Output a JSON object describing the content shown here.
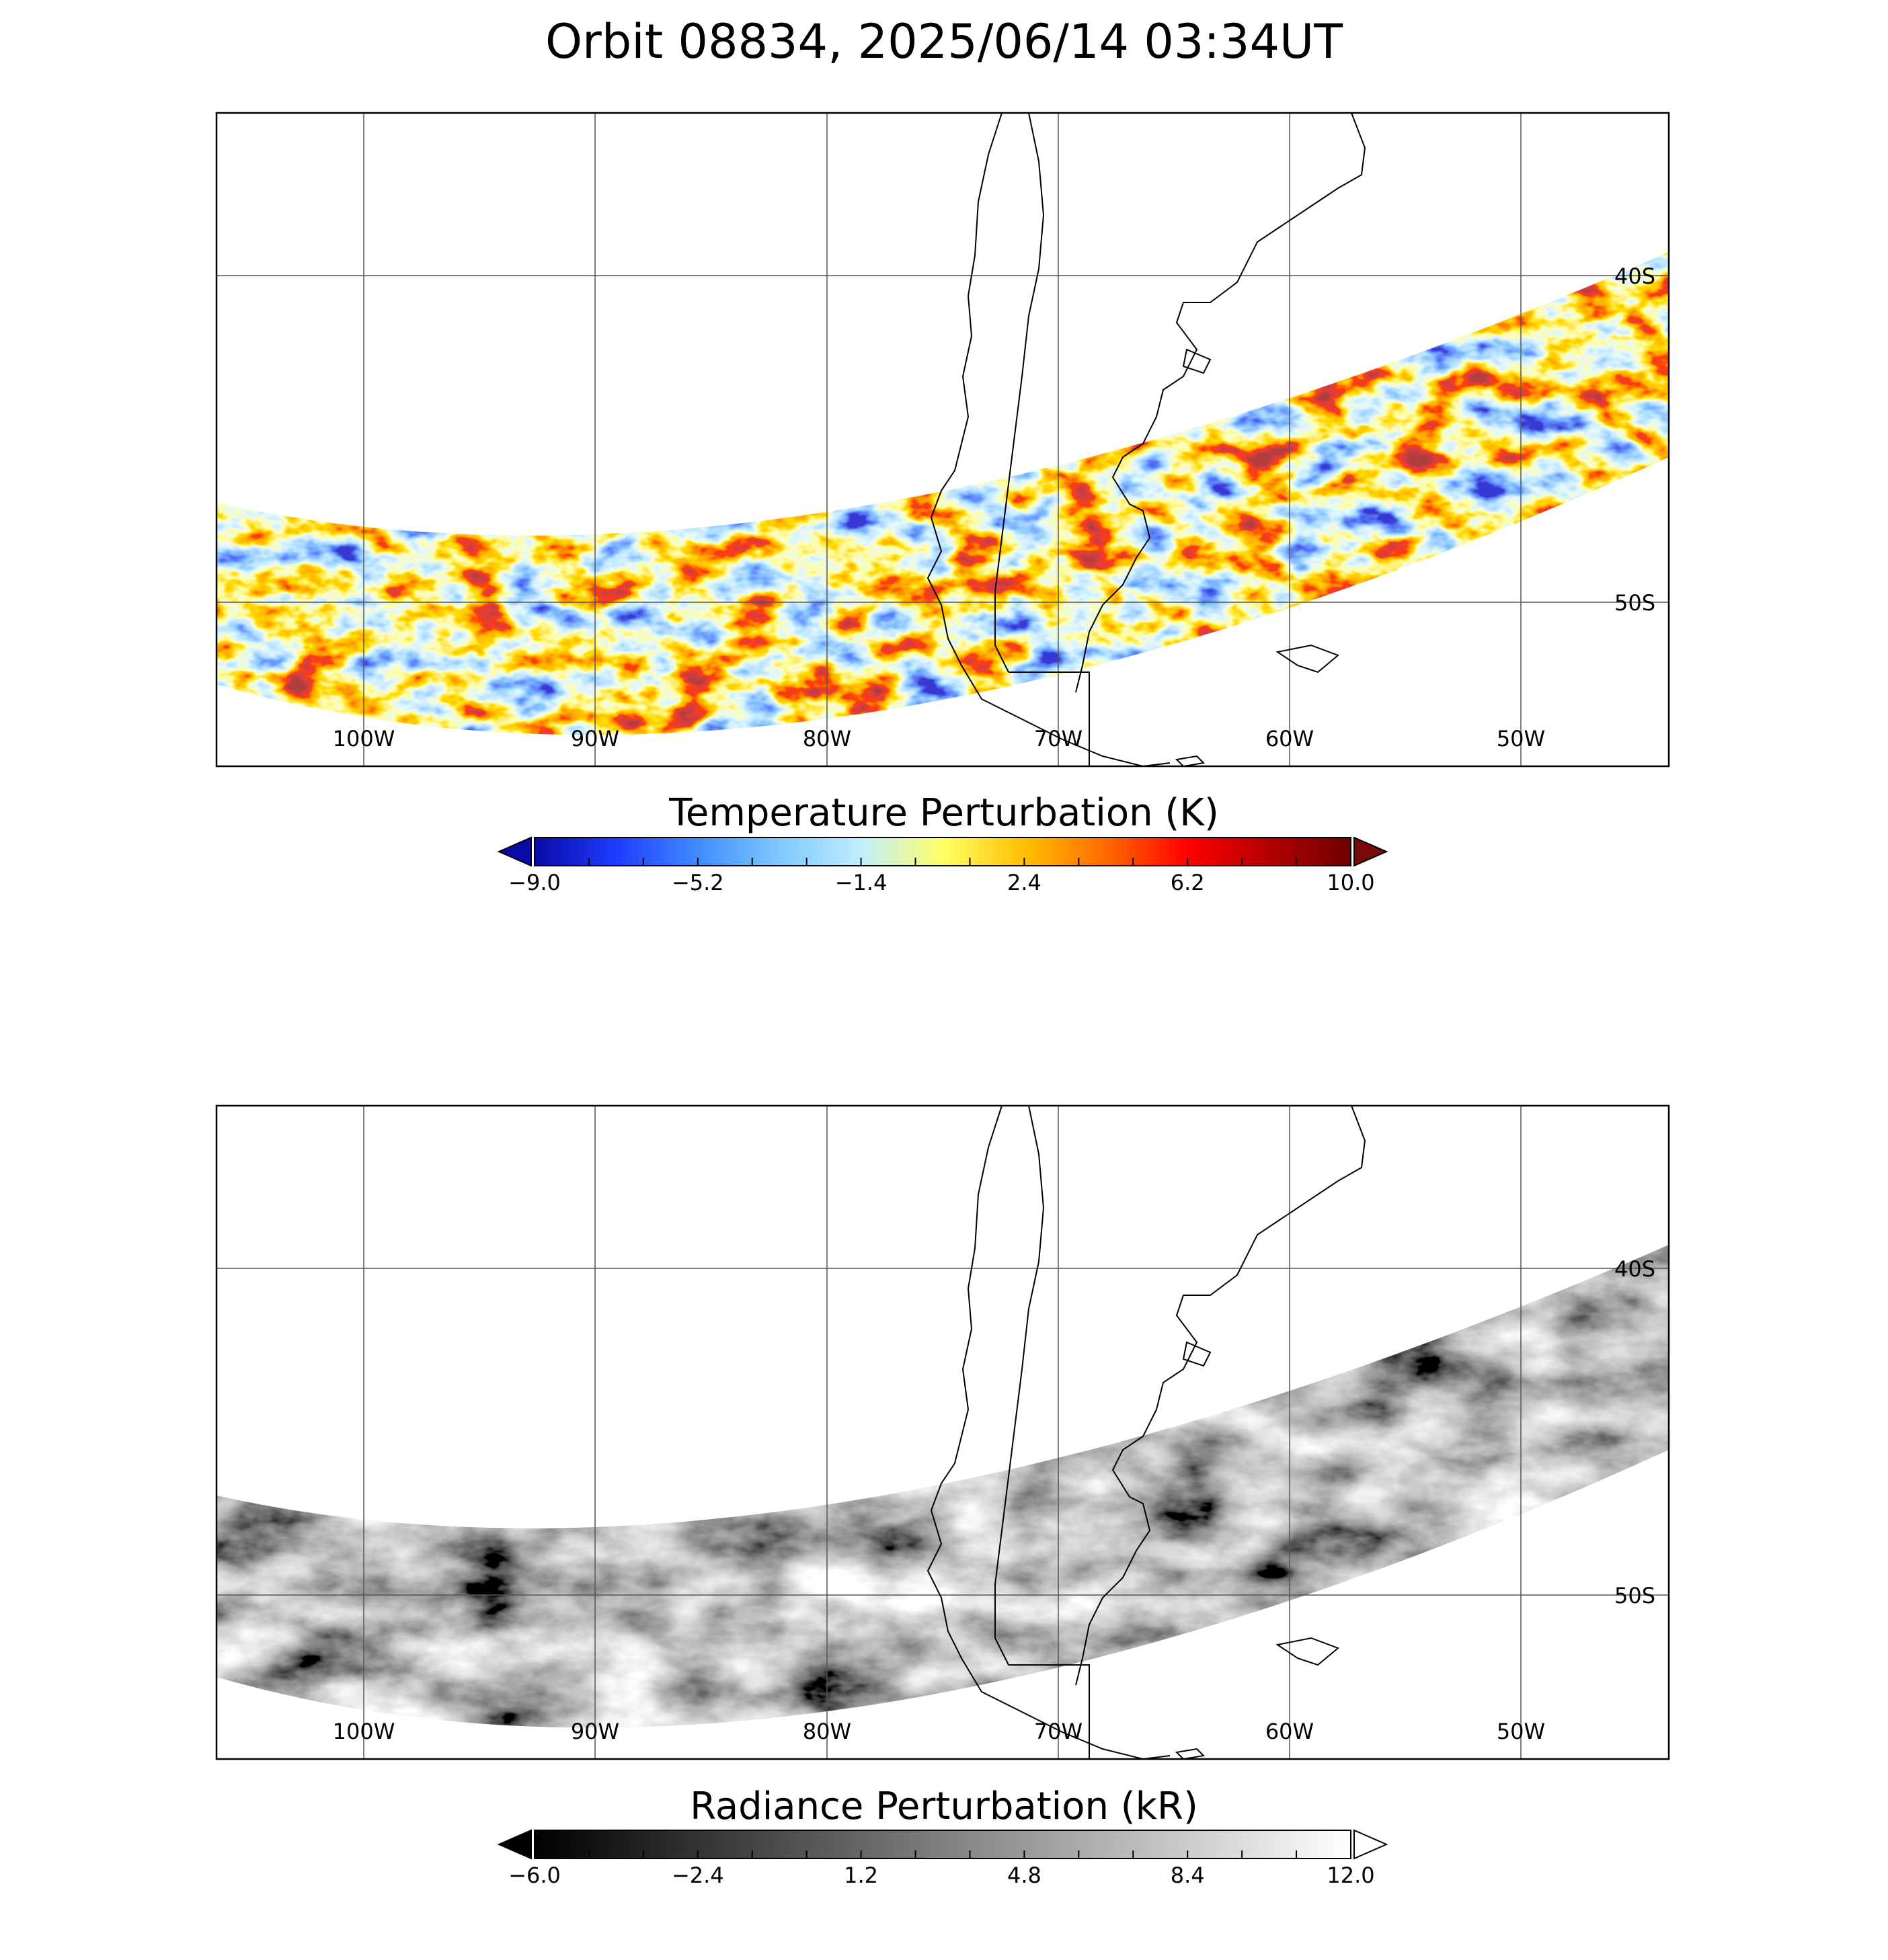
{
  "title": "Orbit 08834, 2025/06/14 03:34UT",
  "panels": [
    {
      "id": "temperature",
      "colorbar": {
        "title": "Temperature Perturbation (K)",
        "ticks": [
          "-9.0",
          "-5.2",
          "-1.4",
          "2.4",
          "6.2",
          "10.0"
        ],
        "range": [
          -9.0,
          10.0
        ],
        "colormap": [
          "#0a0aa6",
          "#1e3cff",
          "#3f8cff",
          "#7fc8ff",
          "#bfeeff",
          "#ffff66",
          "#ffc000",
          "#ff6a00",
          "#ff0000",
          "#b40000",
          "#6e0000"
        ],
        "extend_low_color": "#0a0aa6",
        "extend_high_color": "#7a0a0a"
      }
    },
    {
      "id": "radiance",
      "colorbar": {
        "title": "Radiance Perturbation (kR)",
        "ticks": [
          "-6.0",
          "-2.4",
          "1.2",
          "4.8",
          "8.4",
          "12.0"
        ],
        "range": [
          -6.0,
          12.0
        ],
        "colormap": [
          "#000000",
          "#ffffff"
        ],
        "extend_low_color": "#000000",
        "extend_high_color": "#ffffff"
      }
    }
  ],
  "map": {
    "longitude_labels": [
      "100W",
      "90W",
      "80W",
      "70W",
      "60W",
      "50W"
    ],
    "latitude_labels": [
      "40S",
      "50S"
    ],
    "land_outline_color": "#000000",
    "grid_color": "#555555"
  }
}
